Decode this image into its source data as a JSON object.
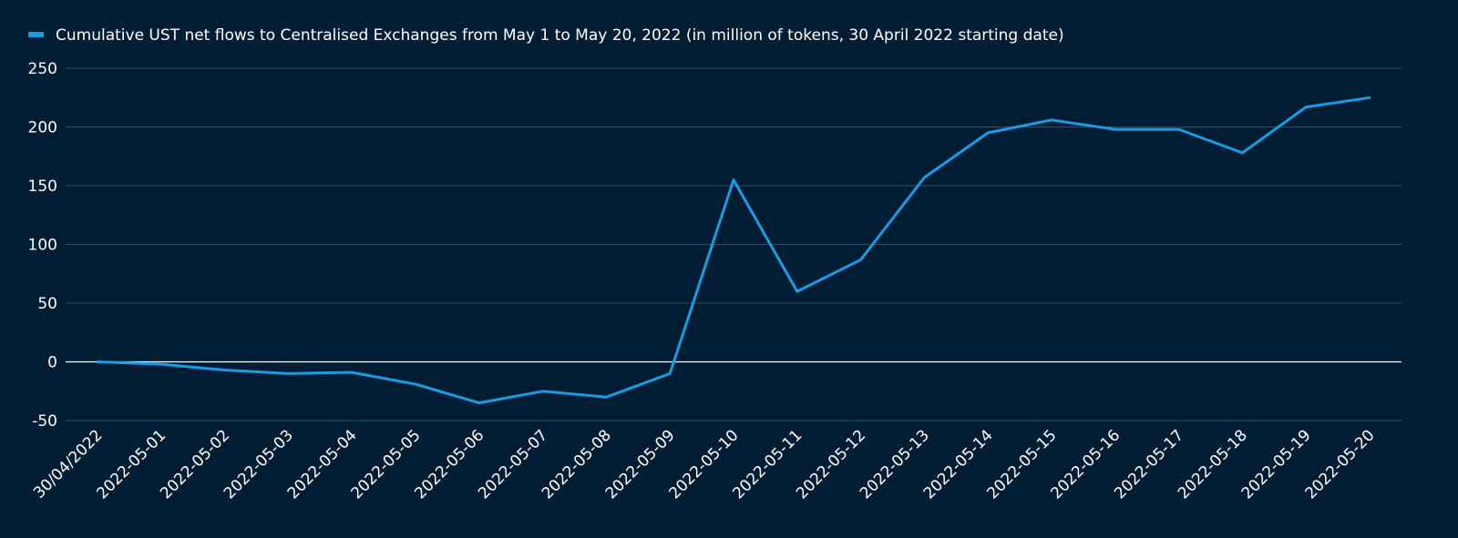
{
  "chart_data": {
    "type": "line",
    "title": "",
    "xlabel": "",
    "ylabel": "",
    "ylim": [
      -50,
      250
    ],
    "yticks": [
      250,
      200,
      150,
      100,
      50,
      0,
      -50
    ],
    "grid": true,
    "legend_position": "top-left",
    "categories": [
      "30/04/2022",
      "2022-05-01",
      "2022-05-02",
      "2022-05-03",
      "2022-05-04",
      "2022-05-05",
      "2022-05-06",
      "2022-05-07",
      "2022-05-08",
      "2022-05-09",
      "2022-05-10",
      "2022-05-11",
      "2022-05-12",
      "2022-05-13",
      "2022-05-14",
      "2022-05-15",
      "2022-05-16",
      "2022-05-17",
      "2022-05-18",
      "2022-05-19",
      "2022-05-20"
    ],
    "series": [
      {
        "name": "Cumulative UST net flows to Centralised Exchanges from May 1 to May 20, 2022 (in million of tokens, 30 April 2022 starting date)",
        "color": "#1a9be6",
        "values": [
          0,
          -2,
          -7,
          -10,
          -9,
          -19,
          -35,
          -25,
          -30,
          -10,
          155,
          60,
          87,
          157,
          195,
          206,
          198,
          198,
          178,
          217,
          225
        ]
      }
    ]
  }
}
